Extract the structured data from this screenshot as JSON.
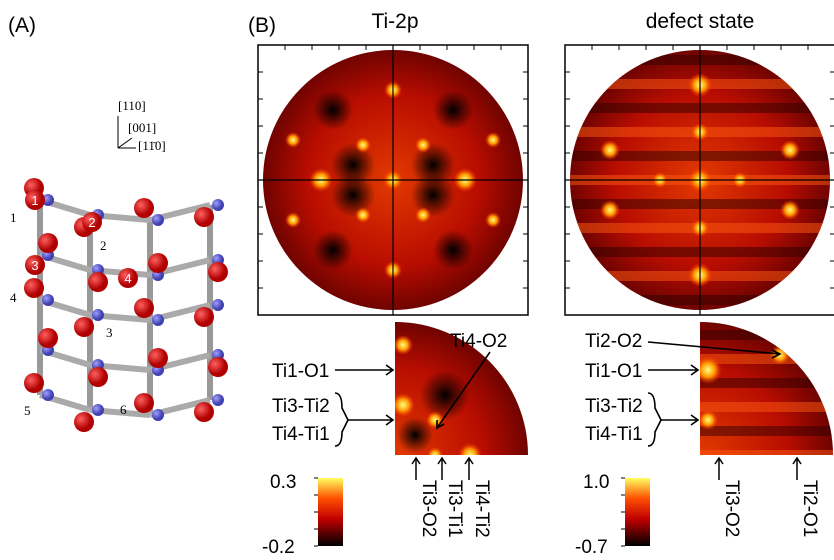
{
  "panel_a": {
    "label": "(A)",
    "axes": [
      "[110]",
      "[001]",
      "[11̄0]"
    ],
    "atom_numbers": [
      "1",
      "2",
      "3",
      "4"
    ],
    "site_labels": [
      "1",
      "2",
      "3",
      "4",
      "5",
      "6"
    ]
  },
  "panel_b": {
    "label": "(B)",
    "maps": [
      {
        "title": "Ti-2p",
        "annotations": [
          "Ti1-O1",
          "Ti3-Ti2",
          "Ti4-Ti1",
          "Ti4-O2"
        ],
        "bottom_labels": [
          "Ti3-O2",
          "Ti3-Ti1",
          "Ti4-Ti2"
        ],
        "colorbar": [
          "0.3",
          "-0.2"
        ]
      },
      {
        "title": "defect state",
        "annotations": [
          "Ti2-O2",
          "Ti1-O1",
          "Ti3-Ti2",
          "Ti4-Ti1"
        ],
        "bottom_labels": [
          "Ti3-O2",
          "Ti2-O1"
        ],
        "colorbar": [
          "1.0",
          "-0.7"
        ]
      }
    ]
  }
}
